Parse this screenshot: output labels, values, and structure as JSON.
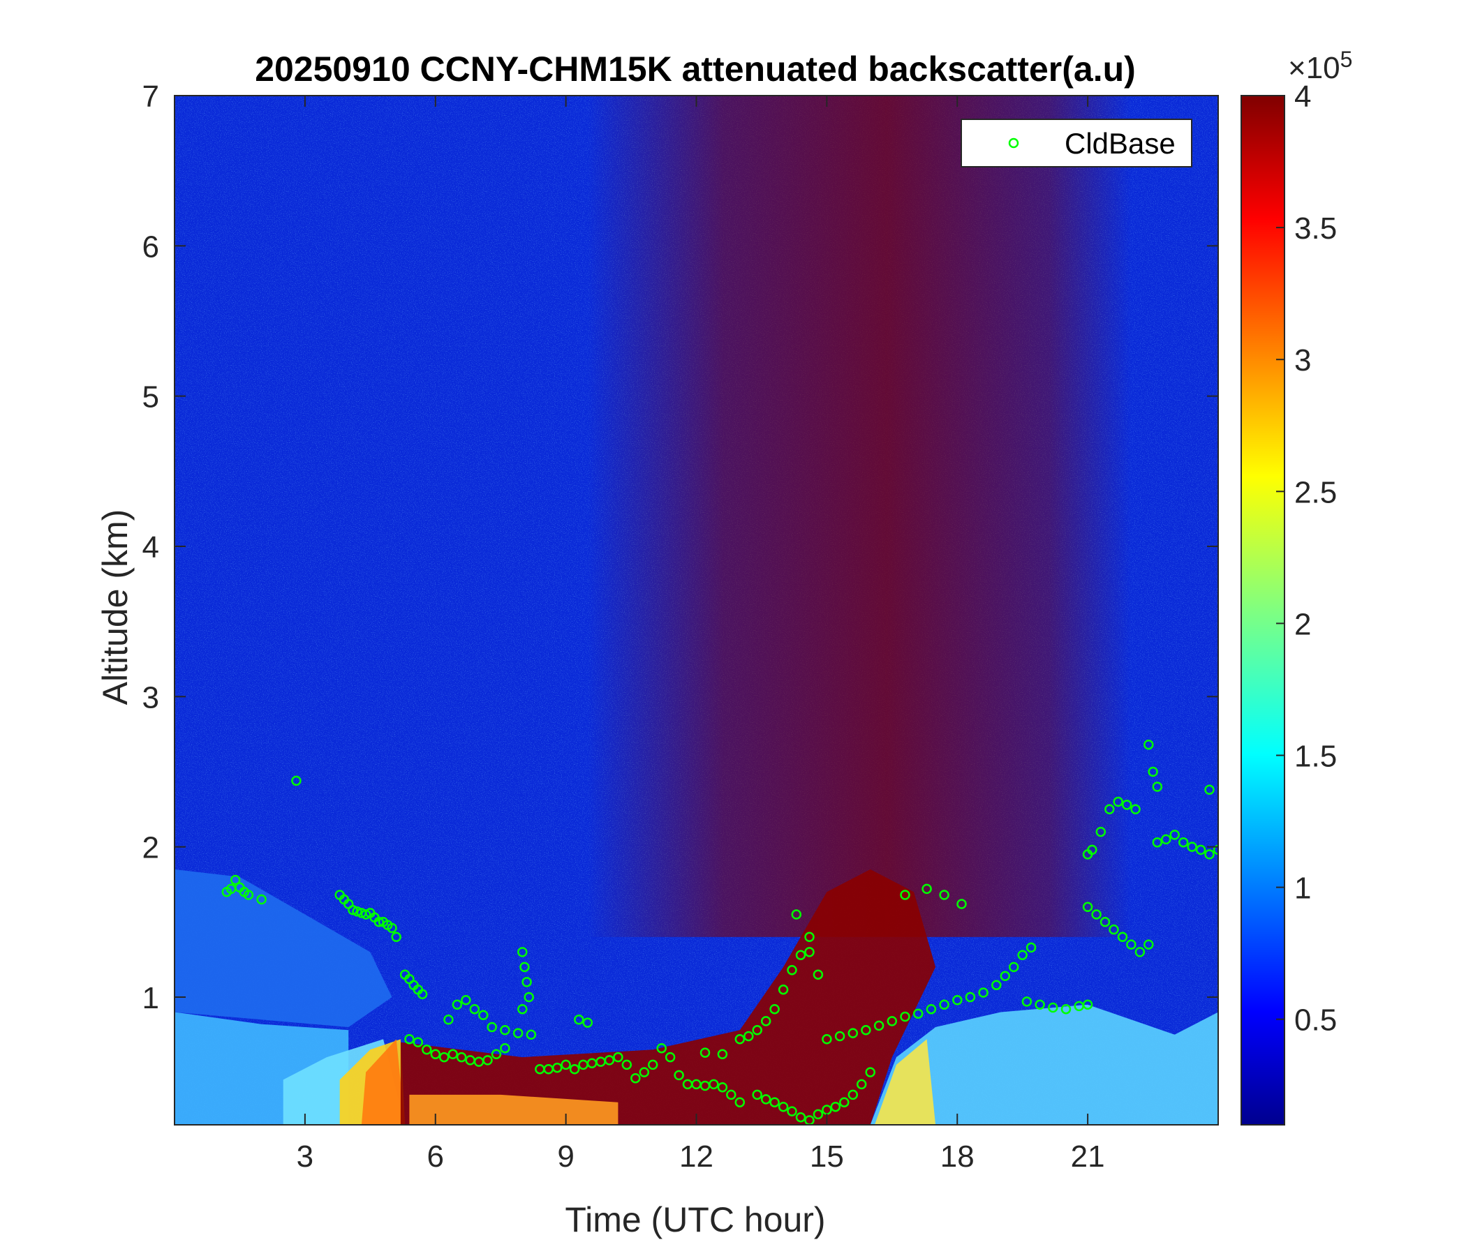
{
  "chart_data": {
    "type": "heatmap",
    "title": "20250910 CCNY-CHM15K attenuated backscatter(a.u)",
    "xlabel": "Time (UTC hour)",
    "ylabel": "Altitude (km)",
    "xlim": [
      0,
      24
    ],
    "ylim": [
      0.15,
      7
    ],
    "x_ticks": [
      "3",
      "6",
      "9",
      "12",
      "15",
      "18",
      "21"
    ],
    "x_tick_values": [
      3,
      6,
      9,
      12,
      15,
      18,
      21
    ],
    "y_ticks": [
      "1",
      "2",
      "3",
      "4",
      "5",
      "6",
      "7"
    ],
    "y_tick_values": [
      1,
      2,
      3,
      4,
      5,
      6,
      7
    ],
    "colorbar": {
      "colormap": "jet",
      "clim": [
        0.1,
        4
      ],
      "ticks": [
        "0.5",
        "1",
        "1.5",
        "2",
        "2.5",
        "3",
        "3.5",
        "4"
      ],
      "tick_values": [
        0.5,
        1,
        1.5,
        2,
        2.5,
        3,
        3.5,
        4
      ],
      "exponent_label": "×10",
      "exponent_power": "5"
    },
    "legend": {
      "position": "top-right",
      "entries": [
        {
          "name": "CldBase",
          "marker": "circle",
          "color": "#00ff00"
        }
      ]
    },
    "series": [
      {
        "name": "CldBase",
        "marker": "o",
        "color": "#00ff00",
        "points": [
          [
            1.2,
            1.7
          ],
          [
            1.3,
            1.72
          ],
          [
            1.4,
            1.78
          ],
          [
            1.5,
            1.73
          ],
          [
            1.6,
            1.7
          ],
          [
            1.7,
            1.68
          ],
          [
            2.0,
            1.65
          ],
          [
            2.8,
            2.44
          ],
          [
            3.8,
            1.68
          ],
          [
            3.9,
            1.65
          ],
          [
            4.0,
            1.62
          ],
          [
            4.1,
            1.58
          ],
          [
            4.2,
            1.57
          ],
          [
            4.3,
            1.56
          ],
          [
            4.4,
            1.55
          ],
          [
            4.5,
            1.56
          ],
          [
            4.6,
            1.53
          ],
          [
            4.7,
            1.5
          ],
          [
            4.8,
            1.5
          ],
          [
            4.9,
            1.48
          ],
          [
            5.0,
            1.46
          ],
          [
            5.1,
            1.4
          ],
          [
            5.3,
            1.15
          ],
          [
            5.4,
            1.12
          ],
          [
            5.5,
            1.08
          ],
          [
            5.6,
            1.05
          ],
          [
            5.7,
            1.02
          ],
          [
            5.4,
            0.72
          ],
          [
            5.6,
            0.7
          ],
          [
            5.8,
            0.65
          ],
          [
            6.0,
            0.62
          ],
          [
            6.2,
            0.6
          ],
          [
            6.4,
            0.62
          ],
          [
            6.6,
            0.6
          ],
          [
            6.8,
            0.58
          ],
          [
            7.0,
            0.57
          ],
          [
            7.2,
            0.58
          ],
          [
            7.4,
            0.62
          ],
          [
            7.6,
            0.66
          ],
          [
            6.3,
            0.85
          ],
          [
            6.5,
            0.95
          ],
          [
            6.7,
            0.98
          ],
          [
            6.9,
            0.92
          ],
          [
            7.1,
            0.88
          ],
          [
            7.3,
            0.8
          ],
          [
            7.6,
            0.78
          ],
          [
            7.9,
            0.76
          ],
          [
            8.0,
            1.3
          ],
          [
            8.05,
            1.2
          ],
          [
            8.1,
            1.1
          ],
          [
            8.15,
            1.0
          ],
          [
            8.0,
            0.92
          ],
          [
            8.2,
            0.75
          ],
          [
            8.4,
            0.52
          ],
          [
            8.6,
            0.52
          ],
          [
            8.8,
            0.53
          ],
          [
            9.0,
            0.55
          ],
          [
            9.2,
            0.52
          ],
          [
            9.4,
            0.55
          ],
          [
            9.6,
            0.56
          ],
          [
            9.8,
            0.57
          ],
          [
            10.0,
            0.58
          ],
          [
            10.2,
            0.6
          ],
          [
            10.4,
            0.55
          ],
          [
            9.3,
            0.85
          ],
          [
            9.5,
            0.83
          ],
          [
            10.6,
            0.46
          ],
          [
            10.8,
            0.5
          ],
          [
            11.0,
            0.55
          ],
          [
            11.2,
            0.66
          ],
          [
            11.4,
            0.6
          ],
          [
            11.6,
            0.48
          ],
          [
            11.8,
            0.42
          ],
          [
            12.0,
            0.42
          ],
          [
            12.2,
            0.41
          ],
          [
            12.4,
            0.42
          ],
          [
            12.6,
            0.4
          ],
          [
            12.8,
            0.35
          ],
          [
            13.0,
            0.3
          ],
          [
            12.2,
            0.63
          ],
          [
            12.6,
            0.62
          ],
          [
            13.0,
            0.72
          ],
          [
            13.2,
            0.74
          ],
          [
            13.4,
            0.78
          ],
          [
            13.6,
            0.84
          ],
          [
            13.8,
            0.92
          ],
          [
            14.0,
            1.05
          ],
          [
            14.2,
            1.18
          ],
          [
            14.4,
            1.28
          ],
          [
            14.6,
            1.3
          ],
          [
            14.8,
            1.15
          ],
          [
            14.3,
            1.55
          ],
          [
            14.6,
            1.4
          ],
          [
            13.4,
            0.35
          ],
          [
            13.6,
            0.32
          ],
          [
            13.8,
            0.3
          ],
          [
            14.0,
            0.27
          ],
          [
            14.2,
            0.24
          ],
          [
            14.4,
            0.2
          ],
          [
            14.6,
            0.18
          ],
          [
            14.8,
            0.22
          ],
          [
            15.0,
            0.25
          ],
          [
            15.2,
            0.27
          ],
          [
            15.4,
            0.3
          ],
          [
            15.6,
            0.35
          ],
          [
            15.8,
            0.42
          ],
          [
            16.0,
            0.5
          ],
          [
            15.0,
            0.72
          ],
          [
            15.3,
            0.74
          ],
          [
            15.6,
            0.76
          ],
          [
            15.9,
            0.78
          ],
          [
            16.2,
            0.81
          ],
          [
            16.5,
            0.84
          ],
          [
            16.8,
            0.87
          ],
          [
            17.1,
            0.89
          ],
          [
            17.4,
            0.92
          ],
          [
            17.7,
            0.95
          ],
          [
            18.0,
            0.98
          ],
          [
            18.3,
            1.0
          ],
          [
            18.6,
            1.03
          ],
          [
            18.9,
            1.08
          ],
          [
            19.1,
            1.14
          ],
          [
            19.3,
            1.2
          ],
          [
            19.5,
            1.28
          ],
          [
            19.7,
            1.33
          ],
          [
            16.8,
            1.68
          ],
          [
            17.3,
            1.72
          ],
          [
            17.7,
            1.68
          ],
          [
            18.1,
            1.62
          ],
          [
            19.6,
            0.97
          ],
          [
            19.9,
            0.95
          ],
          [
            20.2,
            0.93
          ],
          [
            20.5,
            0.92
          ],
          [
            20.8,
            0.94
          ],
          [
            21.0,
            0.95
          ],
          [
            21.0,
            1.6
          ],
          [
            21.2,
            1.55
          ],
          [
            21.4,
            1.5
          ],
          [
            21.6,
            1.45
          ],
          [
            21.8,
            1.4
          ],
          [
            22.0,
            1.35
          ],
          [
            22.2,
            1.3
          ],
          [
            22.4,
            1.35
          ],
          [
            21.0,
            1.95
          ],
          [
            21.1,
            1.98
          ],
          [
            21.3,
            2.1
          ],
          [
            21.5,
            2.25
          ],
          [
            21.7,
            2.3
          ],
          [
            21.9,
            2.28
          ],
          [
            22.1,
            2.25
          ],
          [
            22.4,
            2.68
          ],
          [
            22.5,
            2.5
          ],
          [
            22.6,
            2.4
          ],
          [
            22.6,
            2.03
          ],
          [
            22.8,
            2.05
          ],
          [
            23.0,
            2.08
          ],
          [
            23.2,
            2.03
          ],
          [
            23.4,
            2.0
          ],
          [
            23.6,
            1.98
          ],
          [
            23.8,
            1.95
          ],
          [
            24.0,
            1.98
          ],
          [
            23.8,
            2.38
          ]
        ]
      }
    ]
  }
}
